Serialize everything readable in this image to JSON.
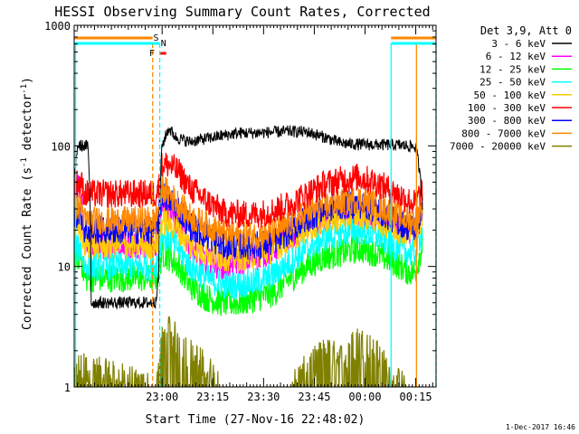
{
  "chart_data": {
    "type": "line",
    "title": "HESSI Observing Summary Count Rates, Corrected",
    "xlabel": "Start Time (27-Nov-16 22:48:02)",
    "ylabel_main": "Corrected Count Rate (s",
    "ylabel_sup1": "-1",
    "ylabel_mid": " detector",
    "ylabel_sup2": "-1",
    "ylabel_end": ")",
    "yscale": "log",
    "ylim": [
      1,
      1000
    ],
    "xlim_minutes": [
      -14,
      93
    ],
    "x_ticks": [
      {
        "t": 12,
        "label": "23:00"
      },
      {
        "t": 27,
        "label": "23:15"
      },
      {
        "t": 42,
        "label": "23:30"
      },
      {
        "t": 57,
        "label": "23:45"
      },
      {
        "t": 72,
        "label": "00:00"
      },
      {
        "t": 87,
        "label": "00:15"
      }
    ],
    "y_ticks": [
      {
        "v": 1,
        "label": "1"
      },
      {
        "v": 10,
        "label": "10"
      },
      {
        "v": 100,
        "label": "100"
      },
      {
        "v": 1000,
        "label": "1000"
      }
    ],
    "legend_header": "Det 3,9, Att 0",
    "legend_placement": "top-right outside",
    "series": [
      {
        "name": "3 - 6 keV",
        "color": "#000000",
        "data": [
          [
            -14,
            45
          ],
          [
            -13,
            100
          ],
          [
            -12,
            100
          ],
          [
            -11,
            100
          ],
          [
            -10,
            100
          ],
          [
            -9,
            5
          ],
          [
            10,
            5
          ],
          [
            11,
            8
          ],
          [
            12,
            100
          ],
          [
            14,
            140
          ],
          [
            16,
            118
          ],
          [
            20,
            108
          ],
          [
            25,
            115
          ],
          [
            30,
            122
          ],
          [
            35,
            128
          ],
          [
            40,
            128
          ],
          [
            45,
            130
          ],
          [
            50,
            132
          ],
          [
            55,
            130
          ],
          [
            60,
            118
          ],
          [
            65,
            105
          ],
          [
            70,
            103
          ],
          [
            75,
            102
          ],
          [
            80,
            102
          ],
          [
            85,
            100
          ],
          [
            87,
            98
          ],
          [
            89,
            30
          ]
        ]
      },
      {
        "name": "6 - 12 keV",
        "color": "#ff00ff",
        "data": [
          [
            -14,
            40
          ],
          [
            -13,
            45
          ],
          [
            -12,
            40
          ],
          [
            -11,
            15
          ],
          [
            10,
            15
          ],
          [
            11,
            20
          ],
          [
            12,
            36
          ],
          [
            14,
            28
          ],
          [
            17,
            22
          ],
          [
            20,
            15
          ],
          [
            25,
            11
          ],
          [
            30,
            10
          ],
          [
            35,
            11
          ],
          [
            40,
            12
          ],
          [
            45,
            14
          ],
          [
            50,
            18
          ],
          [
            55,
            22
          ],
          [
            60,
            24
          ],
          [
            65,
            26
          ],
          [
            70,
            28
          ],
          [
            75,
            26
          ],
          [
            80,
            22
          ],
          [
            85,
            20
          ],
          [
            87,
            20
          ],
          [
            89,
            28
          ]
        ]
      },
      {
        "name": "12 - 25 keV",
        "color": "#00ff00",
        "data": [
          [
            -14,
            12
          ],
          [
            -13,
            12
          ],
          [
            -12,
            12
          ],
          [
            -11,
            8
          ],
          [
            10,
            8
          ],
          [
            11,
            9
          ],
          [
            12,
            13
          ],
          [
            14,
            12
          ],
          [
            17,
            10
          ],
          [
            20,
            7
          ],
          [
            25,
            5.5
          ],
          [
            30,
            5
          ],
          [
            35,
            5
          ],
          [
            40,
            5.5
          ],
          [
            45,
            6
          ],
          [
            50,
            8
          ],
          [
            55,
            10
          ],
          [
            60,
            12
          ],
          [
            65,
            13
          ],
          [
            70,
            14
          ],
          [
            75,
            13
          ],
          [
            80,
            11
          ],
          [
            85,
            9
          ],
          [
            87,
            9
          ],
          [
            89,
            15
          ]
        ]
      },
      {
        "name": "25 - 50 keV",
        "color": "#00ffff",
        "data": [
          [
            -14,
            14
          ],
          [
            -13,
            14
          ],
          [
            -12,
            14
          ],
          [
            -11,
            10
          ],
          [
            10,
            10
          ],
          [
            11,
            12
          ],
          [
            12,
            18
          ],
          [
            14,
            17
          ],
          [
            17,
            14
          ],
          [
            20,
            10
          ],
          [
            25,
            8
          ],
          [
            30,
            7
          ],
          [
            35,
            7
          ],
          [
            40,
            7.5
          ],
          [
            45,
            8.5
          ],
          [
            50,
            11
          ],
          [
            55,
            14
          ],
          [
            60,
            17
          ],
          [
            65,
            19
          ],
          [
            70,
            20
          ],
          [
            75,
            18
          ],
          [
            80,
            15
          ],
          [
            85,
            13
          ],
          [
            87,
            13
          ],
          [
            89,
            20
          ]
        ]
      },
      {
        "name": "50 - 100 keV",
        "color": "#ffcc00",
        "data": [
          [
            -14,
            20
          ],
          [
            -13,
            20
          ],
          [
            -12,
            20
          ],
          [
            -11,
            15
          ],
          [
            10,
            15
          ],
          [
            11,
            17
          ],
          [
            12,
            24
          ],
          [
            14,
            23
          ],
          [
            17,
            20
          ],
          [
            20,
            15
          ],
          [
            25,
            13
          ],
          [
            30,
            12
          ],
          [
            35,
            12
          ],
          [
            40,
            12.5
          ],
          [
            45,
            14
          ],
          [
            50,
            17
          ],
          [
            55,
            21
          ],
          [
            60,
            24
          ],
          [
            65,
            26
          ],
          [
            70,
            27
          ],
          [
            75,
            25
          ],
          [
            80,
            21
          ],
          [
            85,
            19
          ],
          [
            87,
            19
          ],
          [
            89,
            26
          ]
        ]
      },
      {
        "name": "100 - 300 keV",
        "color": "#ff0000",
        "data": [
          [
            -14,
            45
          ],
          [
            -13,
            50
          ],
          [
            -12,
            50
          ],
          [
            -11,
            40
          ],
          [
            10,
            40
          ],
          [
            11,
            45
          ],
          [
            12,
            70
          ],
          [
            14,
            70
          ],
          [
            17,
            60
          ],
          [
            20,
            45
          ],
          [
            25,
            35
          ],
          [
            30,
            28
          ],
          [
            35,
            27
          ],
          [
            40,
            27
          ],
          [
            45,
            29
          ],
          [
            50,
            33
          ],
          [
            55,
            40
          ],
          [
            60,
            48
          ],
          [
            65,
            52
          ],
          [
            70,
            55
          ],
          [
            75,
            50
          ],
          [
            80,
            42
          ],
          [
            85,
            35
          ],
          [
            87,
            33
          ],
          [
            89,
            45
          ]
        ]
      },
      {
        "name": "300 - 800 keV",
        "color": "#0000ff",
        "data": [
          [
            -14,
            25
          ],
          [
            -13,
            28
          ],
          [
            -12,
            28
          ],
          [
            -11,
            20
          ],
          [
            10,
            20
          ],
          [
            11,
            25
          ],
          [
            12,
            40
          ],
          [
            14,
            36
          ],
          [
            17,
            30
          ],
          [
            20,
            22
          ],
          [
            25,
            18
          ],
          [
            30,
            15
          ],
          [
            35,
            15
          ],
          [
            40,
            15
          ],
          [
            45,
            16
          ],
          [
            50,
            20
          ],
          [
            55,
            25
          ],
          [
            60,
            30
          ],
          [
            65,
            32
          ],
          [
            70,
            33
          ],
          [
            75,
            30
          ],
          [
            80,
            25
          ],
          [
            85,
            21
          ],
          [
            87,
            21
          ],
          [
            89,
            30
          ]
        ]
      },
      {
        "name": "800 - 7000 keV",
        "color": "#ff8800",
        "data": [
          [
            -14,
            30
          ],
          [
            -13,
            32
          ],
          [
            -12,
            32
          ],
          [
            -11,
            24
          ],
          [
            10,
            24
          ],
          [
            11,
            30
          ],
          [
            12,
            45
          ],
          [
            14,
            40
          ],
          [
            17,
            33
          ],
          [
            20,
            26
          ],
          [
            25,
            22
          ],
          [
            30,
            19
          ],
          [
            35,
            18
          ],
          [
            40,
            18
          ],
          [
            45,
            19
          ],
          [
            50,
            23
          ],
          [
            55,
            28
          ],
          [
            60,
            32
          ],
          [
            65,
            34
          ],
          [
            70,
            36
          ],
          [
            75,
            33
          ],
          [
            80,
            28
          ],
          [
            85,
            24
          ],
          [
            87,
            24
          ],
          [
            89,
            32
          ]
        ]
      },
      {
        "name": "7000 - 20000 keV",
        "color": "#808000",
        "data": [
          [
            -14,
            1
          ],
          [
            -13,
            1.5
          ],
          [
            -12,
            1.5
          ],
          [
            10,
            1
          ],
          [
            11,
            1.5
          ],
          [
            12,
            2.5
          ],
          [
            14,
            3
          ],
          [
            17,
            2.5
          ],
          [
            20,
            2
          ],
          [
            25,
            1.5
          ],
          [
            30,
            1
          ],
          [
            50,
            1
          ],
          [
            55,
            1.5
          ],
          [
            60,
            2
          ],
          [
            65,
            1.8
          ],
          [
            70,
            2.5
          ],
          [
            75,
            2
          ],
          [
            80,
            1.2
          ],
          [
            85,
            1
          ],
          [
            89,
            1
          ]
        ]
      }
    ],
    "flags": [
      {
        "name": "S",
        "color": "#ff8800",
        "label": "S"
      },
      {
        "name": "F",
        "color": "#ff0000",
        "label": "F"
      },
      {
        "name": "N",
        "color": "#00ccff",
        "label": "N"
      }
    ],
    "vertical_markers": [
      {
        "t": -13.6,
        "color": "#00ffff",
        "style": "solid"
      },
      {
        "t": 9.2,
        "color": "#ff8800",
        "style": "dashed"
      },
      {
        "t": 11.3,
        "color": "#00ffff",
        "style": "dashed"
      },
      {
        "t": 79.7,
        "color": "#00ffff",
        "style": "solid"
      },
      {
        "t": 87.2,
        "color": "#ff8800",
        "style": "solid"
      },
      {
        "t": 93,
        "color": "#00ffff",
        "style": "dashed"
      }
    ],
    "footer": "1-Dec-2017 16:46"
  }
}
